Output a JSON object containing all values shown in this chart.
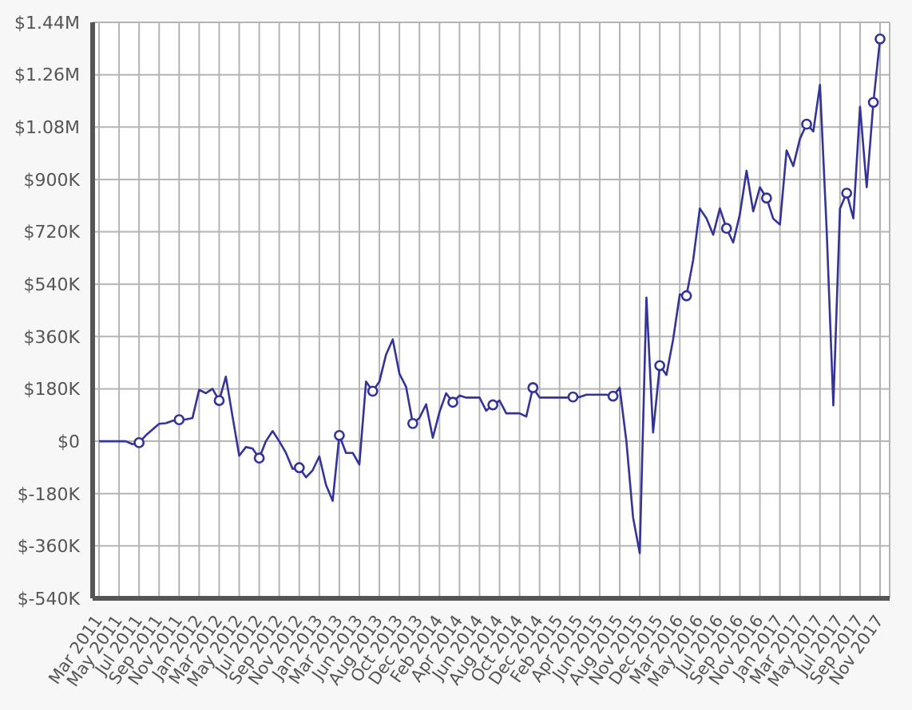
{
  "chart_data": {
    "type": "line",
    "categories": [
      "Mar 2011",
      null,
      null,
      "May 2011",
      null,
      null,
      "Jul 2011",
      null,
      null,
      "Sep 2011",
      null,
      null,
      "Nov 2011",
      null,
      null,
      "Jan 2012",
      null,
      null,
      "Mar 2012",
      null,
      null,
      "May 2012",
      null,
      null,
      "Jul 2012",
      null,
      null,
      "Sep 2012",
      null,
      null,
      "Nov 2012",
      null,
      null,
      "Jan 2013",
      null,
      null,
      "Mar 2013",
      null,
      null,
      "Jun 2013",
      null,
      null,
      "Aug 2013",
      null,
      null,
      "Oct 2013",
      null,
      null,
      "Dec 2013",
      null,
      null,
      "Feb 2014",
      null,
      null,
      "Apr 2014",
      null,
      null,
      "Jun 2014",
      null,
      null,
      "Aug 2014",
      null,
      null,
      "Oct 2014",
      null,
      null,
      "Dec 2014",
      null,
      null,
      "Feb 2015",
      null,
      null,
      "Apr 2015",
      null,
      null,
      "Jun 2015",
      null,
      null,
      "Aug 2015",
      null,
      null,
      "Nov 2015",
      null,
      null,
      "Dec 2015",
      null,
      null,
      "Mar 2016",
      null,
      null,
      "May 2016",
      null,
      null,
      "Jul 2016",
      null,
      null,
      "Sep 2016",
      null,
      null,
      "Nov 2016",
      null,
      null,
      "Jan 2017",
      null,
      null,
      "Mar 2017",
      null,
      null,
      "May 2017",
      null,
      null,
      "Jul 2017",
      null,
      null,
      "Sep 2017",
      null,
      null,
      "Nov 2017"
    ],
    "series": [
      {
        "color": "#333399",
        "marker": "none",
        "values": [
          0,
          0,
          0,
          0,
          0,
          -10000,
          -5000,
          20000,
          40000,
          60000,
          62000,
          70000,
          74000,
          75000,
          80000,
          177000,
          165000,
          180000,
          140000,
          222000,
          85000,
          -50000,
          -20000,
          -25000,
          -58000,
          0,
          35000,
          0,
          -40000,
          -95000,
          -91000,
          -124000,
          -100000,
          -52000,
          -150000,
          -205000,
          20000,
          -40000,
          -40000,
          -80000,
          205000,
          172000,
          205000,
          298000,
          350000,
          232000,
          187000,
          61000,
          80000,
          127000,
          12000,
          100000,
          165000,
          134000,
          157000,
          150000,
          150000,
          150000,
          105000,
          125000,
          140000,
          96000,
          96000,
          96000,
          85000,
          184000,
          150000,
          150000,
          150000,
          150000,
          150000,
          152000,
          152000,
          160000,
          160000,
          160000,
          160000,
          155000,
          184000,
          0,
          -262000,
          -385000,
          494000,
          30000,
          260000,
          228000,
          350000,
          505000,
          500000,
          622000,
          800000,
          766000,
          710000,
          800000,
          732000,
          683000,
          780000,
          930000,
          790000,
          873000,
          836000,
          765000,
          745000,
          1000000,
          946000,
          1040000,
          1090000,
          1065000,
          1225000,
          727000,
          123000,
          800000,
          853000,
          766000,
          1150000,
          873000,
          1165000,
          1383000
        ]
      },
      {
        "type": "scatter",
        "color": "#333399",
        "marker": "circle",
        "values": [
          null,
          null,
          null,
          null,
          null,
          null,
          -5000,
          null,
          null,
          null,
          null,
          null,
          74000,
          null,
          null,
          null,
          null,
          null,
          140000,
          null,
          null,
          null,
          null,
          null,
          -58000,
          null,
          null,
          null,
          null,
          null,
          -91000,
          null,
          null,
          null,
          null,
          null,
          20000,
          null,
          null,
          null,
          null,
          172000,
          null,
          null,
          null,
          null,
          null,
          61000,
          null,
          null,
          null,
          null,
          null,
          134000,
          null,
          null,
          null,
          null,
          null,
          125000,
          null,
          null,
          null,
          null,
          null,
          184000,
          null,
          null,
          null,
          null,
          null,
          152000,
          null,
          null,
          null,
          null,
          null,
          155000,
          null,
          null,
          null,
          null,
          null,
          null,
          260000,
          null,
          null,
          null,
          500000,
          null,
          null,
          null,
          null,
          null,
          732000,
          null,
          null,
          null,
          null,
          null,
          836000,
          null,
          null,
          null,
          null,
          null,
          1090000,
          null,
          null,
          null,
          null,
          null,
          853000,
          null,
          null,
          null,
          1165000,
          1383000
        ]
      }
    ],
    "ylim": [
      -540000,
      1440000
    ],
    "yticks": [
      {
        "value": -540000,
        "label": "$-540K"
      },
      {
        "value": -360000,
        "label": "$-360K"
      },
      {
        "value": -180000,
        "label": "$-180K"
      },
      {
        "value": 0,
        "label": "$0"
      },
      {
        "value": 180000,
        "label": "$180K"
      },
      {
        "value": 360000,
        "label": "$360K"
      },
      {
        "value": 540000,
        "label": "$540K"
      },
      {
        "value": 720000,
        "label": "$720K"
      },
      {
        "value": 900000,
        "label": "$900K"
      },
      {
        "value": 1080000,
        "label": "$1.08M"
      },
      {
        "value": 1260000,
        "label": "$1.26M"
      },
      {
        "value": 1440000,
        "label": "$1.44M"
      }
    ],
    "grid": true
  }
}
